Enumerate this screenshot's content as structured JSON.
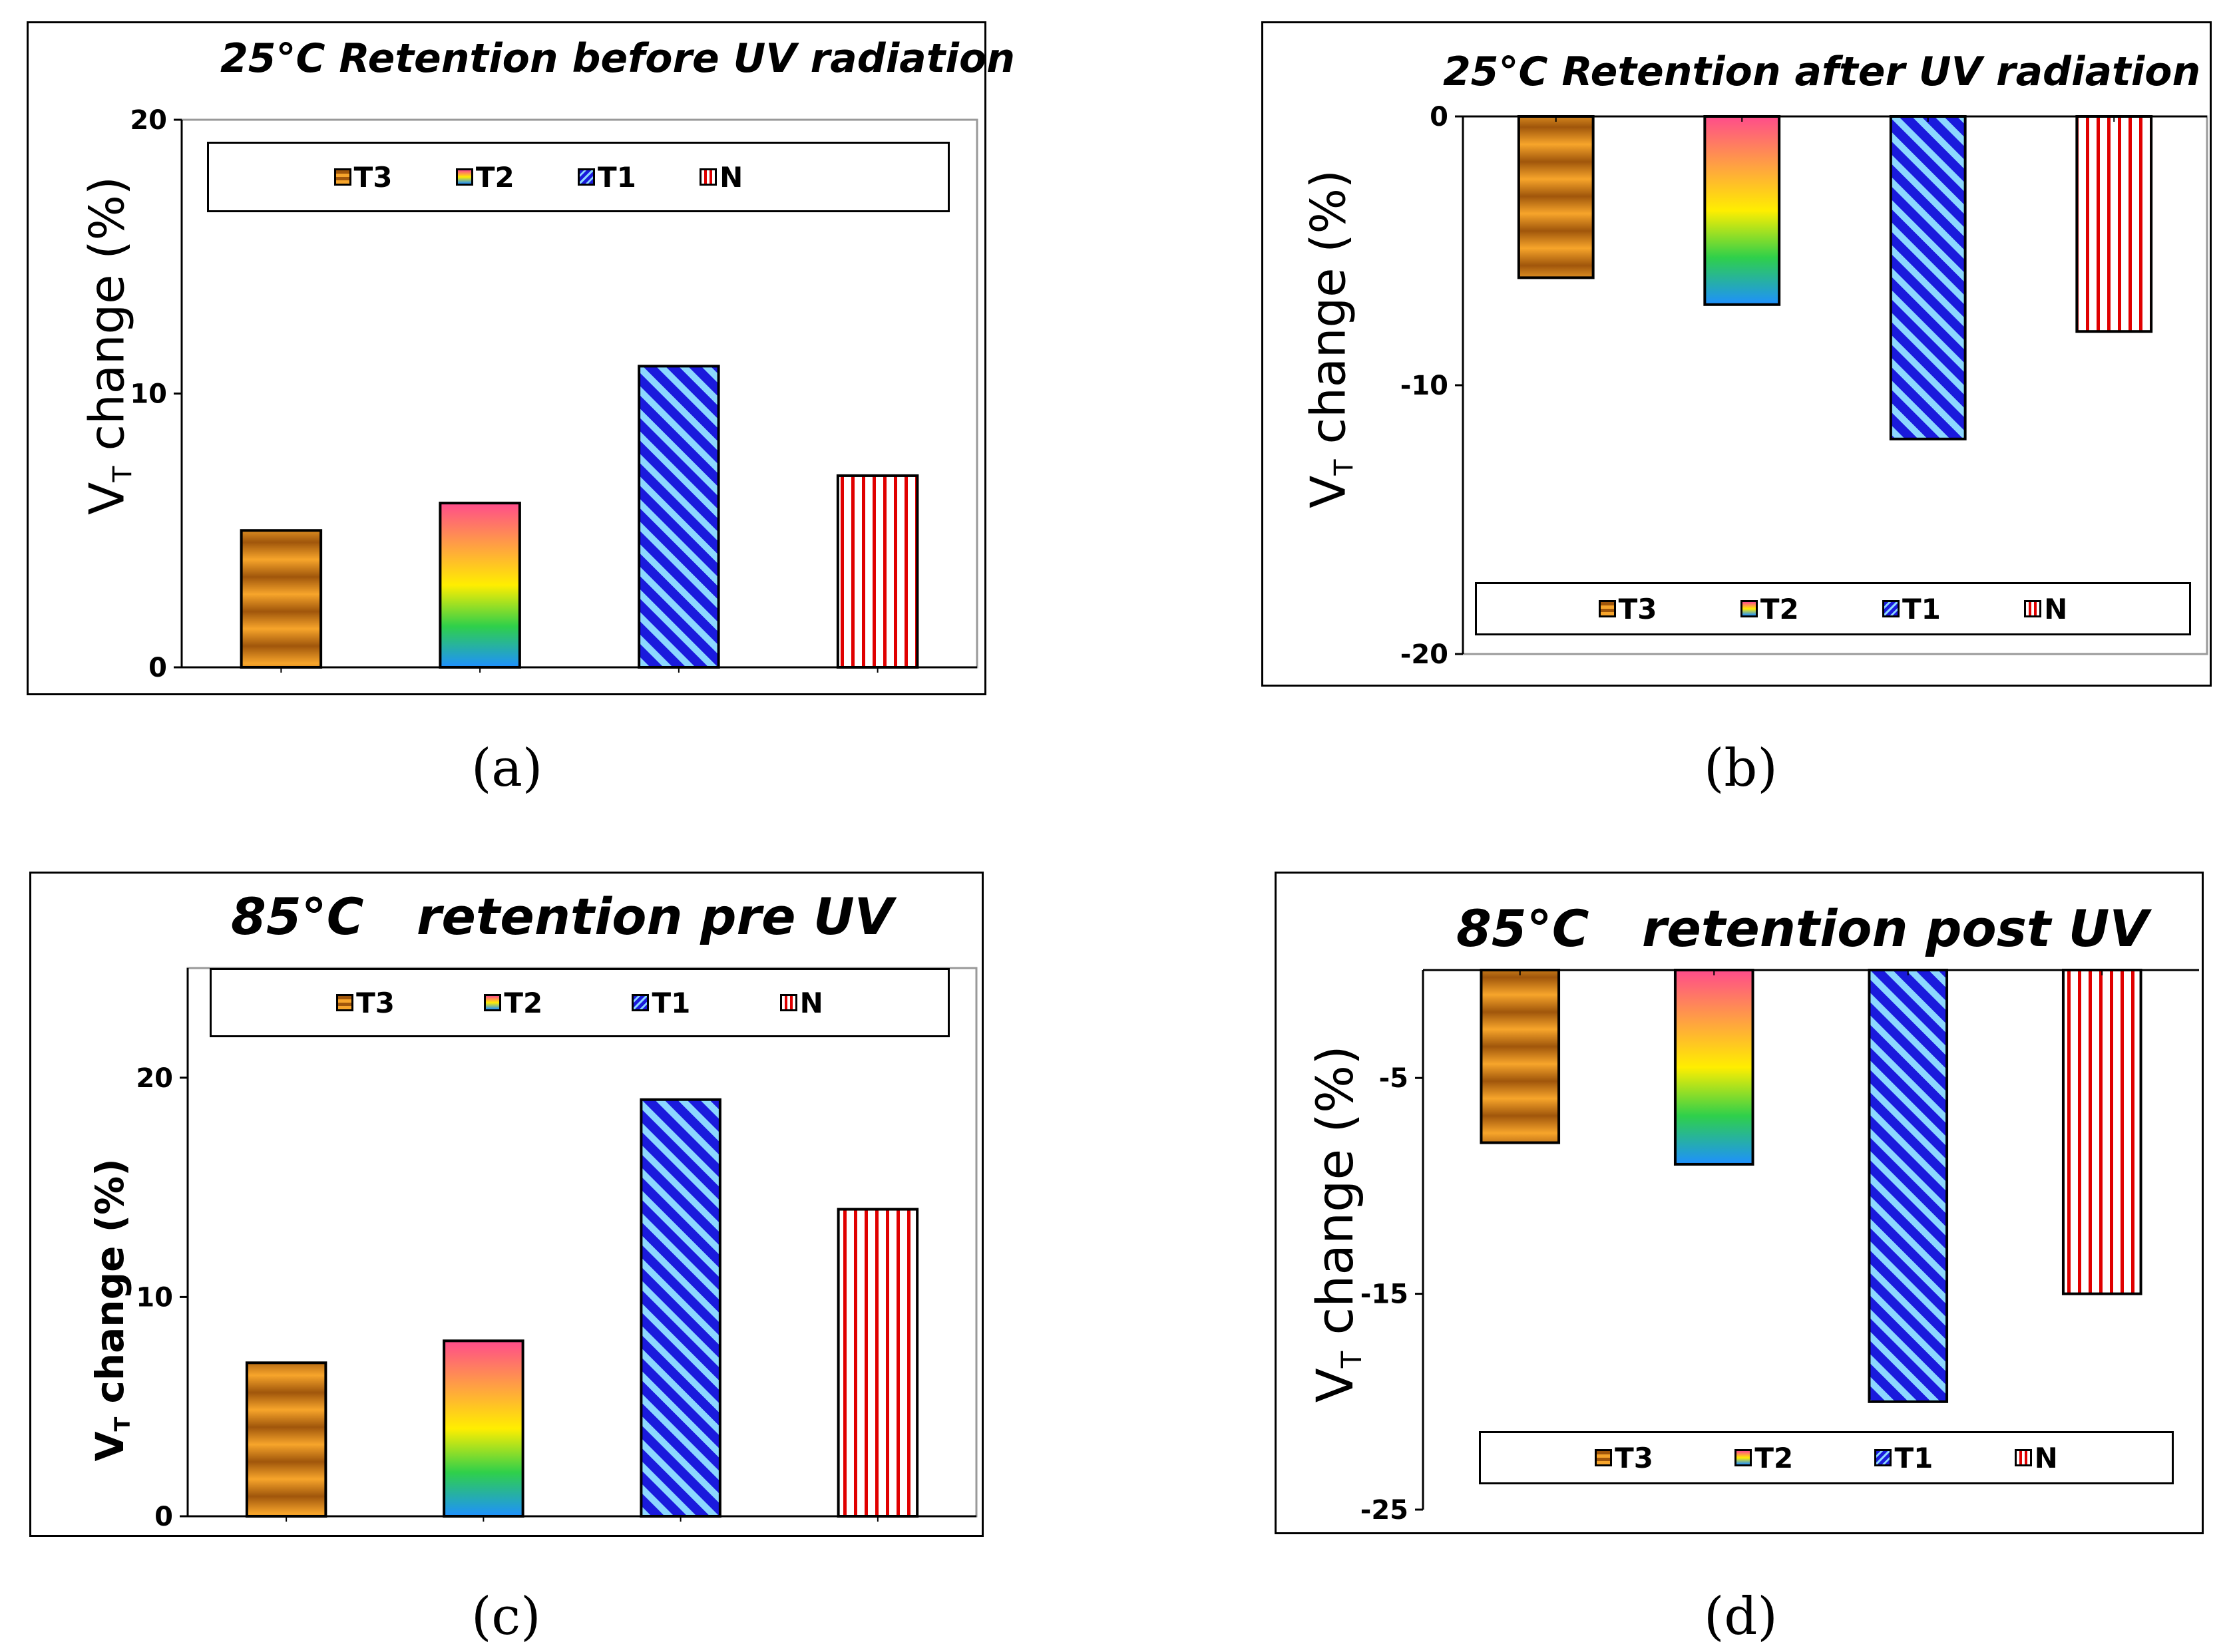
{
  "series_styles": {
    "T3": {
      "fill": "pat-stripes-orange",
      "colors": [
        "#a0560b",
        "#f7a52b"
      ]
    },
    "T2": {
      "fill": "grad-rainbow",
      "colors": [
        "#ff4c8b",
        "#ffee00",
        "#1e90ff"
      ]
    },
    "T1": {
      "fill": "pat-diag-blue",
      "colors": [
        "#1a1adc",
        "#8cd8ff"
      ]
    },
    "N": {
      "fill": "pat-vert-red",
      "colors": [
        "#e00000",
        "#ffffff"
      ]
    }
  },
  "chart_data": [
    {
      "id": "a",
      "type": "bar",
      "title": "25°C Retention before UV radiation",
      "ylabel": "V",
      "ylabel_sub": "T",
      "ylabel_rest": " change (%)",
      "categories": [
        "T3",
        "T2",
        "T1",
        "N"
      ],
      "values": [
        5,
        6,
        11,
        7
      ],
      "ylim": [
        0,
        20
      ],
      "yticks": [
        "0",
        "10",
        "20"
      ],
      "ytick_values": [
        0,
        10,
        20
      ],
      "legend": [
        "T3",
        "T2",
        "T1",
        "N"
      ],
      "legend_position": "top",
      "caption": "(a)"
    },
    {
      "id": "b",
      "type": "bar",
      "title": "25°C Retention after UV radiation",
      "ylabel": "V",
      "ylabel_sub": "T",
      "ylabel_rest": " change (%)",
      "categories": [
        "T3",
        "T2",
        "T1",
        "N"
      ],
      "values": [
        -6,
        -7,
        -12,
        -8
      ],
      "ylim": [
        -20,
        0
      ],
      "yticks": [
        "0",
        "-10",
        "-20"
      ],
      "ytick_values": [
        0,
        -10,
        -20
      ],
      "legend": [
        "T3",
        "T2",
        "T1",
        "N"
      ],
      "legend_position": "bottom",
      "caption": "(b)"
    },
    {
      "id": "c",
      "type": "bar",
      "title": "85°C   retention pre UV",
      "ylabel": "V",
      "ylabel_sub": "T",
      "ylabel_rest": " change (%)",
      "categories": [
        "T3",
        "T2",
        "T1",
        "N"
      ],
      "values": [
        7,
        8,
        19,
        14
      ],
      "ylim": [
        0,
        25
      ],
      "yticks": [
        "0",
        "10",
        "20"
      ],
      "ytick_values": [
        0,
        10,
        20
      ],
      "legend": [
        "T3",
        "T2",
        "T1",
        "N"
      ],
      "legend_position": "top",
      "caption": "(c)"
    },
    {
      "id": "d",
      "type": "bar",
      "title": "85°C   retention post UV",
      "ylabel": "V",
      "ylabel_sub": "T",
      "ylabel_rest": " change (%)",
      "categories": [
        "T3",
        "T2",
        "T1",
        "N"
      ],
      "values": [
        -8,
        -9,
        -20,
        -15
      ],
      "ylim": [
        -25,
        0
      ],
      "yticks": [
        "-5",
        "-15",
        "-25"
      ],
      "ytick_values": [
        -5,
        -15,
        -25
      ],
      "legend": [
        "T3",
        "T2",
        "T1",
        "N"
      ],
      "legend_position": "bottom",
      "caption": "(d)"
    }
  ]
}
